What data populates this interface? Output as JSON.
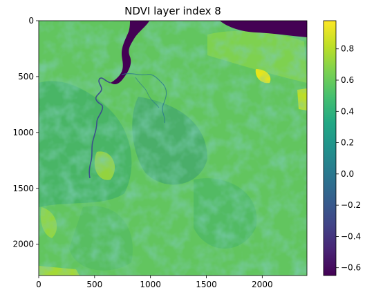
{
  "chart_data": {
    "type": "heatmap",
    "title": "NDVI layer index 8",
    "xlabel": "",
    "ylabel": "",
    "colormap": "viridis",
    "xlim": [
      0,
      2400
    ],
    "ylim": [
      2280,
      0
    ],
    "x_ticks": [
      0,
      500,
      1000,
      1500,
      2000
    ],
    "y_ticks": [
      0,
      500,
      1000,
      1500,
      2000
    ],
    "colorbar": {
      "vmin": -0.65,
      "vmax": 0.98,
      "ticks": [
        -0.6,
        -0.4,
        -0.2,
        0.0,
        0.2,
        0.4,
        0.6,
        0.8
      ],
      "tick_labels": [
        "−0.6",
        "−0.4",
        "−0.2",
        "0.0",
        "0.2",
        "0.4",
        "0.6",
        "0.8"
      ]
    },
    "grid": false,
    "features": {
      "water_color": "#440154",
      "dominant_vegetation_color": "#5ec962",
      "low_vegetation_color": "#2a9d8f",
      "high_vegetation_color": "#c5e021"
    }
  }
}
